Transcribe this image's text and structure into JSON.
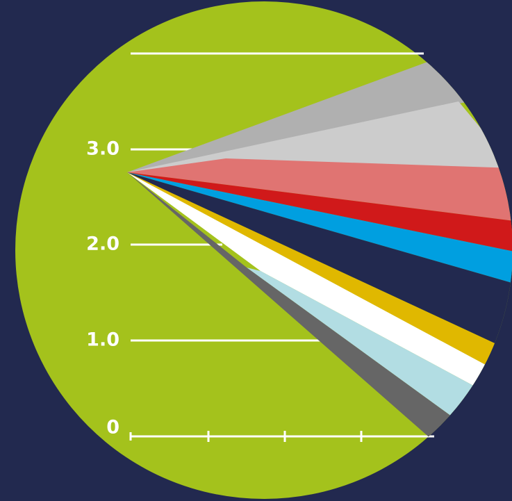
{
  "axis": {
    "labels": [
      "3.0",
      "2.0",
      "1.0",
      "0"
    ]
  }
}
